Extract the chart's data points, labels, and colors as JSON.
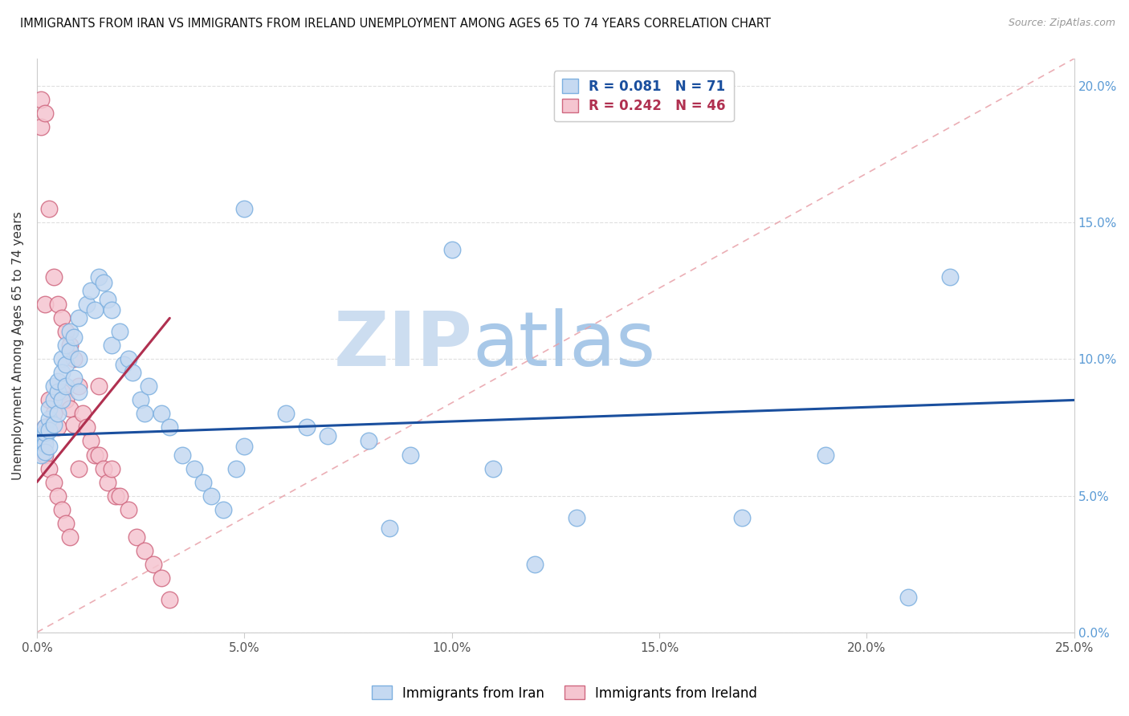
{
  "title": "IMMIGRANTS FROM IRAN VS IMMIGRANTS FROM IRELAND UNEMPLOYMENT AMONG AGES 65 TO 74 YEARS CORRELATION CHART",
  "source": "Source: ZipAtlas.com",
  "ylabel": "Unemployment Among Ages 65 to 74 years",
  "iran_label": "Immigrants from Iran",
  "ireland_label": "Immigrants from Ireland",
  "iran_R": "0.081",
  "iran_N": "71",
  "ireland_R": "0.242",
  "ireland_N": "46",
  "iran_color": "#c5d9f1",
  "iran_edge_color": "#7db0e0",
  "ireland_color": "#f5c5d0",
  "ireland_edge_color": "#d06880",
  "iran_trend_color": "#1a4f9e",
  "ireland_trend_color": "#b03050",
  "ref_line_color": "#e8a0a8",
  "grid_color": "#d8d8d8",
  "watermark_color_zip": "#c8d8ee",
  "watermark_color_atlas": "#a8c8e8",
  "xlim": [
    0.0,
    0.25
  ],
  "ylim": [
    0.0,
    0.21
  ],
  "x_ticks": [
    0.0,
    0.05,
    0.1,
    0.15,
    0.2,
    0.25
  ],
  "y_ticks": [
    0.0,
    0.05,
    0.1,
    0.15,
    0.2
  ],
  "iran_scatter_x": [
    0.001,
    0.001,
    0.001,
    0.001,
    0.002,
    0.002,
    0.002,
    0.002,
    0.002,
    0.003,
    0.003,
    0.003,
    0.003,
    0.004,
    0.004,
    0.004,
    0.005,
    0.005,
    0.005,
    0.006,
    0.006,
    0.006,
    0.007,
    0.007,
    0.007,
    0.008,
    0.008,
    0.009,
    0.009,
    0.01,
    0.01,
    0.01,
    0.012,
    0.013,
    0.014,
    0.015,
    0.016,
    0.017,
    0.018,
    0.018,
    0.02,
    0.021,
    0.022,
    0.023,
    0.025,
    0.026,
    0.027,
    0.03,
    0.032,
    0.035,
    0.038,
    0.04,
    0.042,
    0.045,
    0.048,
    0.05,
    0.06,
    0.065,
    0.07,
    0.08,
    0.085,
    0.09,
    0.1,
    0.11,
    0.13,
    0.17,
    0.19,
    0.21,
    0.22,
    0.05,
    0.12
  ],
  "iran_scatter_y": [
    0.07,
    0.068,
    0.065,
    0.072,
    0.071,
    0.069,
    0.073,
    0.066,
    0.075,
    0.078,
    0.082,
    0.074,
    0.068,
    0.085,
    0.09,
    0.076,
    0.088,
    0.092,
    0.08,
    0.1,
    0.095,
    0.085,
    0.105,
    0.098,
    0.09,
    0.11,
    0.103,
    0.108,
    0.093,
    0.115,
    0.1,
    0.088,
    0.12,
    0.125,
    0.118,
    0.13,
    0.128,
    0.122,
    0.105,
    0.118,
    0.11,
    0.098,
    0.1,
    0.095,
    0.085,
    0.08,
    0.09,
    0.08,
    0.075,
    0.065,
    0.06,
    0.055,
    0.05,
    0.045,
    0.06,
    0.068,
    0.08,
    0.075,
    0.072,
    0.07,
    0.038,
    0.065,
    0.14,
    0.06,
    0.042,
    0.042,
    0.065,
    0.013,
    0.13,
    0.155,
    0.025
  ],
  "ireland_scatter_x": [
    0.001,
    0.001,
    0.001,
    0.002,
    0.002,
    0.002,
    0.002,
    0.003,
    0.003,
    0.003,
    0.004,
    0.004,
    0.004,
    0.005,
    0.005,
    0.005,
    0.006,
    0.006,
    0.006,
    0.007,
    0.007,
    0.007,
    0.008,
    0.008,
    0.008,
    0.009,
    0.009,
    0.01,
    0.01,
    0.011,
    0.012,
    0.013,
    0.014,
    0.015,
    0.015,
    0.016,
    0.017,
    0.018,
    0.019,
    0.02,
    0.022,
    0.024,
    0.026,
    0.028,
    0.03,
    0.032
  ],
  "ireland_scatter_y": [
    0.195,
    0.185,
    0.07,
    0.19,
    0.12,
    0.075,
    0.065,
    0.155,
    0.085,
    0.06,
    0.13,
    0.08,
    0.055,
    0.12,
    0.075,
    0.05,
    0.115,
    0.088,
    0.045,
    0.11,
    0.085,
    0.04,
    0.105,
    0.082,
    0.035,
    0.1,
    0.076,
    0.09,
    0.06,
    0.08,
    0.075,
    0.07,
    0.065,
    0.065,
    0.09,
    0.06,
    0.055,
    0.06,
    0.05,
    0.05,
    0.045,
    0.035,
    0.03,
    0.025,
    0.02,
    0.012
  ],
  "iran_trend_x": [
    0.0,
    0.25
  ],
  "iran_trend_y": [
    0.072,
    0.085
  ],
  "ireland_trend_x": [
    0.0,
    0.032
  ],
  "ireland_trend_y": [
    0.055,
    0.115
  ],
  "ref_line_x": [
    0.0,
    0.25
  ],
  "ref_line_y": [
    0.0,
    0.21
  ]
}
